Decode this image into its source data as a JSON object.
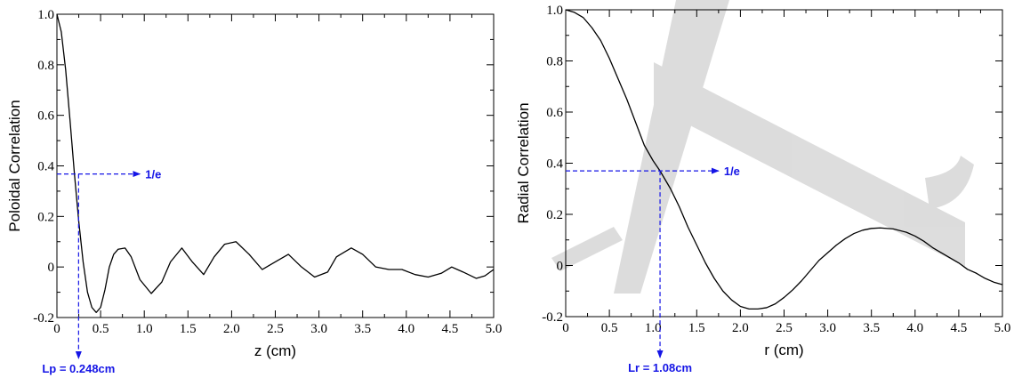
{
  "colors": {
    "annotation": "#1515e6",
    "curve": "#000000",
    "watermark": "#d9d9d9"
  },
  "chart_data": [
    {
      "type": "line",
      "xlabel": "z (cm)",
      "ylabel": "Poloidal Correlation",
      "xlim": [
        0,
        5
      ],
      "ylim": [
        -0.2,
        1.0
      ],
      "xticks": [
        "0",
        "0.5",
        "1.0",
        "1.5",
        "2.0",
        "2.5",
        "3.0",
        "3.5",
        "4.0",
        "4.5",
        "5.0"
      ],
      "yticks": [
        "-0.2",
        "0",
        "0.2",
        "0.4",
        "0.6",
        "0.8",
        "1.0"
      ],
      "grid": false,
      "series": [
        {
          "x": [
            0,
            0.05,
            0.1,
            0.15,
            0.2,
            0.25,
            0.3,
            0.35,
            0.4,
            0.45,
            0.5,
            0.55,
            0.6,
            0.65,
            0.7,
            0.78,
            0.85,
            0.95,
            1.08,
            1.2,
            1.3,
            1.43,
            1.55,
            1.68,
            1.8,
            1.92,
            2.05,
            2.2,
            2.35,
            2.5,
            2.65,
            2.8,
            2.95,
            3.1,
            3.2,
            3.37,
            3.5,
            3.65,
            3.8,
            3.95,
            4.1,
            4.25,
            4.4,
            4.52,
            4.65,
            4.8,
            4.9,
            5.0
          ],
          "y": [
            1.0,
            0.93,
            0.78,
            0.58,
            0.37,
            0.18,
            0.02,
            -0.1,
            -0.16,
            -0.18,
            -0.16,
            -0.09,
            0.0,
            0.05,
            0.07,
            0.075,
            0.04,
            -0.05,
            -0.105,
            -0.06,
            0.02,
            0.075,
            0.02,
            -0.03,
            0.04,
            0.09,
            0.1,
            0.05,
            -0.01,
            0.02,
            0.05,
            0.0,
            -0.04,
            -0.02,
            0.04,
            0.075,
            0.05,
            0.0,
            -0.01,
            -0.01,
            -0.03,
            -0.04,
            -0.025,
            0.0,
            -0.02,
            -0.045,
            -0.035,
            -0.01
          ]
        }
      ],
      "annotations": {
        "e_level": 0.368,
        "e_label": "1/e",
        "e_arrow_to_x": 0.95,
        "length_x": 0.248,
        "length_label": "Lp = 0.248cm"
      }
    },
    {
      "type": "line",
      "xlabel": "r (cm)",
      "ylabel": "Radial Correlation",
      "xlim": [
        0,
        5
      ],
      "ylim": [
        -0.2,
        1.0
      ],
      "xticks": [
        "0",
        "0.5",
        "1.0",
        "1.5",
        "2.0",
        "2.5",
        "3.0",
        "3.5",
        "4.0",
        "4.5",
        "5.0"
      ],
      "yticks": [
        "-0.2",
        "0",
        "0.2",
        "0.4",
        "0.6",
        "0.8",
        "1.0"
      ],
      "grid": false,
      "series": [
        {
          "x": [
            0,
            0.1,
            0.2,
            0.3,
            0.4,
            0.5,
            0.6,
            0.7,
            0.8,
            0.9,
            1.0,
            1.08,
            1.2,
            1.3,
            1.4,
            1.5,
            1.6,
            1.7,
            1.8,
            1.9,
            2.0,
            2.1,
            2.2,
            2.3,
            2.4,
            2.5,
            2.6,
            2.7,
            2.8,
            2.9,
            3.0,
            3.1,
            3.2,
            3.3,
            3.4,
            3.5,
            3.6,
            3.75,
            3.9,
            4.0,
            4.1,
            4.2,
            4.3,
            4.4,
            4.5,
            4.6,
            4.7,
            4.8,
            4.9,
            5.0
          ],
          "y": [
            1.0,
            0.99,
            0.97,
            0.93,
            0.88,
            0.81,
            0.73,
            0.65,
            0.56,
            0.47,
            0.41,
            0.37,
            0.3,
            0.23,
            0.15,
            0.08,
            0.01,
            -0.05,
            -0.1,
            -0.135,
            -0.16,
            -0.17,
            -0.17,
            -0.165,
            -0.15,
            -0.125,
            -0.095,
            -0.06,
            -0.02,
            0.02,
            0.05,
            0.08,
            0.105,
            0.125,
            0.138,
            0.145,
            0.147,
            0.143,
            0.13,
            0.115,
            0.095,
            0.07,
            0.05,
            0.03,
            0.01,
            -0.015,
            -0.03,
            -0.05,
            -0.065,
            -0.075
          ]
        }
      ],
      "annotations": {
        "e_level": 0.37,
        "e_label": "1/e",
        "e_arrow_to_x": 1.75,
        "length_x": 1.08,
        "length_label": "Lr = 1.08cm"
      }
    }
  ]
}
